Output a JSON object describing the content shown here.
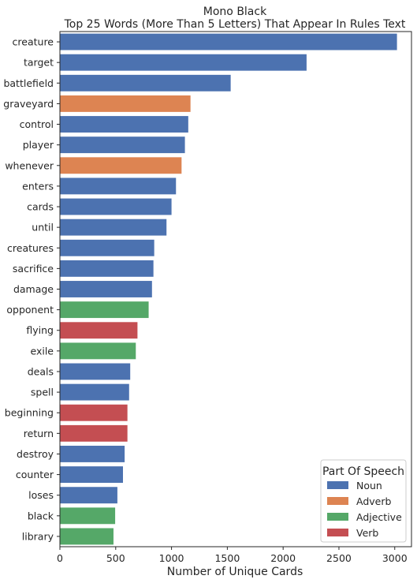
{
  "chart_data": {
    "type": "bar",
    "orientation": "horizontal",
    "title": "Mono Black",
    "subtitle": "Top 25 Words (More Than 5 Letters) That Appear In Rules Text",
    "xlabel": "Number of Unique Cards",
    "ylabel": "",
    "xlim": [
      0,
      3150
    ],
    "xticks": [
      0,
      500,
      1000,
      1500,
      2000,
      2500,
      3000
    ],
    "grid": false,
    "legend": {
      "title": "Part Of Speech",
      "placement": "bottom-right",
      "entries": [
        {
          "label": "Noun",
          "color": "#4c72b0"
        },
        {
          "label": "Adverb",
          "color": "#dd8452"
        },
        {
          "label": "Adjective",
          "color": "#55a868"
        },
        {
          "label": "Verb",
          "color": "#c44e52"
        }
      ]
    },
    "bars": [
      {
        "word": "creature",
        "value": 3020,
        "pos": "Noun"
      },
      {
        "word": "target",
        "value": 2210,
        "pos": "Noun"
      },
      {
        "word": "battlefield",
        "value": 1530,
        "pos": "Noun"
      },
      {
        "word": "graveyard",
        "value": 1170,
        "pos": "Adverb"
      },
      {
        "word": "control",
        "value": 1150,
        "pos": "Noun"
      },
      {
        "word": "player",
        "value": 1120,
        "pos": "Noun"
      },
      {
        "word": "whenever",
        "value": 1090,
        "pos": "Adverb"
      },
      {
        "word": "enters",
        "value": 1040,
        "pos": "Noun"
      },
      {
        "word": "cards",
        "value": 1000,
        "pos": "Noun"
      },
      {
        "word": "until",
        "value": 955,
        "pos": "Noun"
      },
      {
        "word": "creatures",
        "value": 845,
        "pos": "Noun"
      },
      {
        "word": "sacrifice",
        "value": 838,
        "pos": "Noun"
      },
      {
        "word": "damage",
        "value": 825,
        "pos": "Noun"
      },
      {
        "word": "opponent",
        "value": 795,
        "pos": "Adjective"
      },
      {
        "word": "flying",
        "value": 695,
        "pos": "Verb"
      },
      {
        "word": "exile",
        "value": 680,
        "pos": "Adjective"
      },
      {
        "word": "deals",
        "value": 630,
        "pos": "Noun"
      },
      {
        "word": "spell",
        "value": 620,
        "pos": "Noun"
      },
      {
        "word": "beginning",
        "value": 605,
        "pos": "Verb"
      },
      {
        "word": "return",
        "value": 605,
        "pos": "Verb"
      },
      {
        "word": "destroy",
        "value": 580,
        "pos": "Noun"
      },
      {
        "word": "counter",
        "value": 565,
        "pos": "Noun"
      },
      {
        "word": "loses",
        "value": 515,
        "pos": "Noun"
      },
      {
        "word": "black",
        "value": 495,
        "pos": "Adjective"
      },
      {
        "word": "library",
        "value": 480,
        "pos": "Adjective"
      }
    ]
  }
}
